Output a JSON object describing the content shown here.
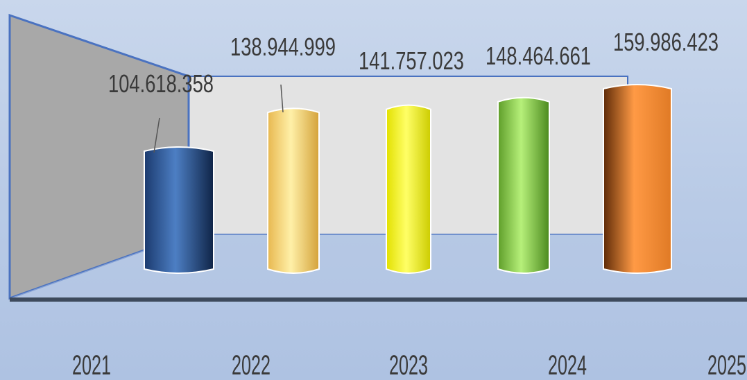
{
  "chart_data": {
    "type": "bar",
    "categories": [
      "2021",
      "2022",
      "2023",
      "2024",
      "2025"
    ],
    "values": [
      104618358,
      138944999,
      141757023,
      148464661,
      159986423
    ],
    "value_labels": [
      "104.618.358",
      "138.944.999",
      "141.757.023",
      "148.464.661",
      "159.986.423"
    ],
    "title": "",
    "xlabel": "",
    "ylabel": "",
    "grid": false,
    "legend": "none"
  },
  "colors": {
    "bars": [
      [
        "#1b3a6e",
        "#4d7fc4",
        "#0f2447"
      ],
      [
        "#e8b850",
        "#fff0a8",
        "#d4a23a"
      ],
      [
        "#e2e000",
        "#ffff66",
        "#cccc00"
      ],
      [
        "#5f9e2a",
        "#b6f07a",
        "#4c8a1e"
      ],
      [
        "#5e2b08",
        "#ff9a45",
        "#e07a25"
      ]
    ],
    "axis": "#3d4a5c",
    "wall": "#e3e3e3",
    "side_wall": "#a8a8a8",
    "frame": "#4a72c0"
  }
}
